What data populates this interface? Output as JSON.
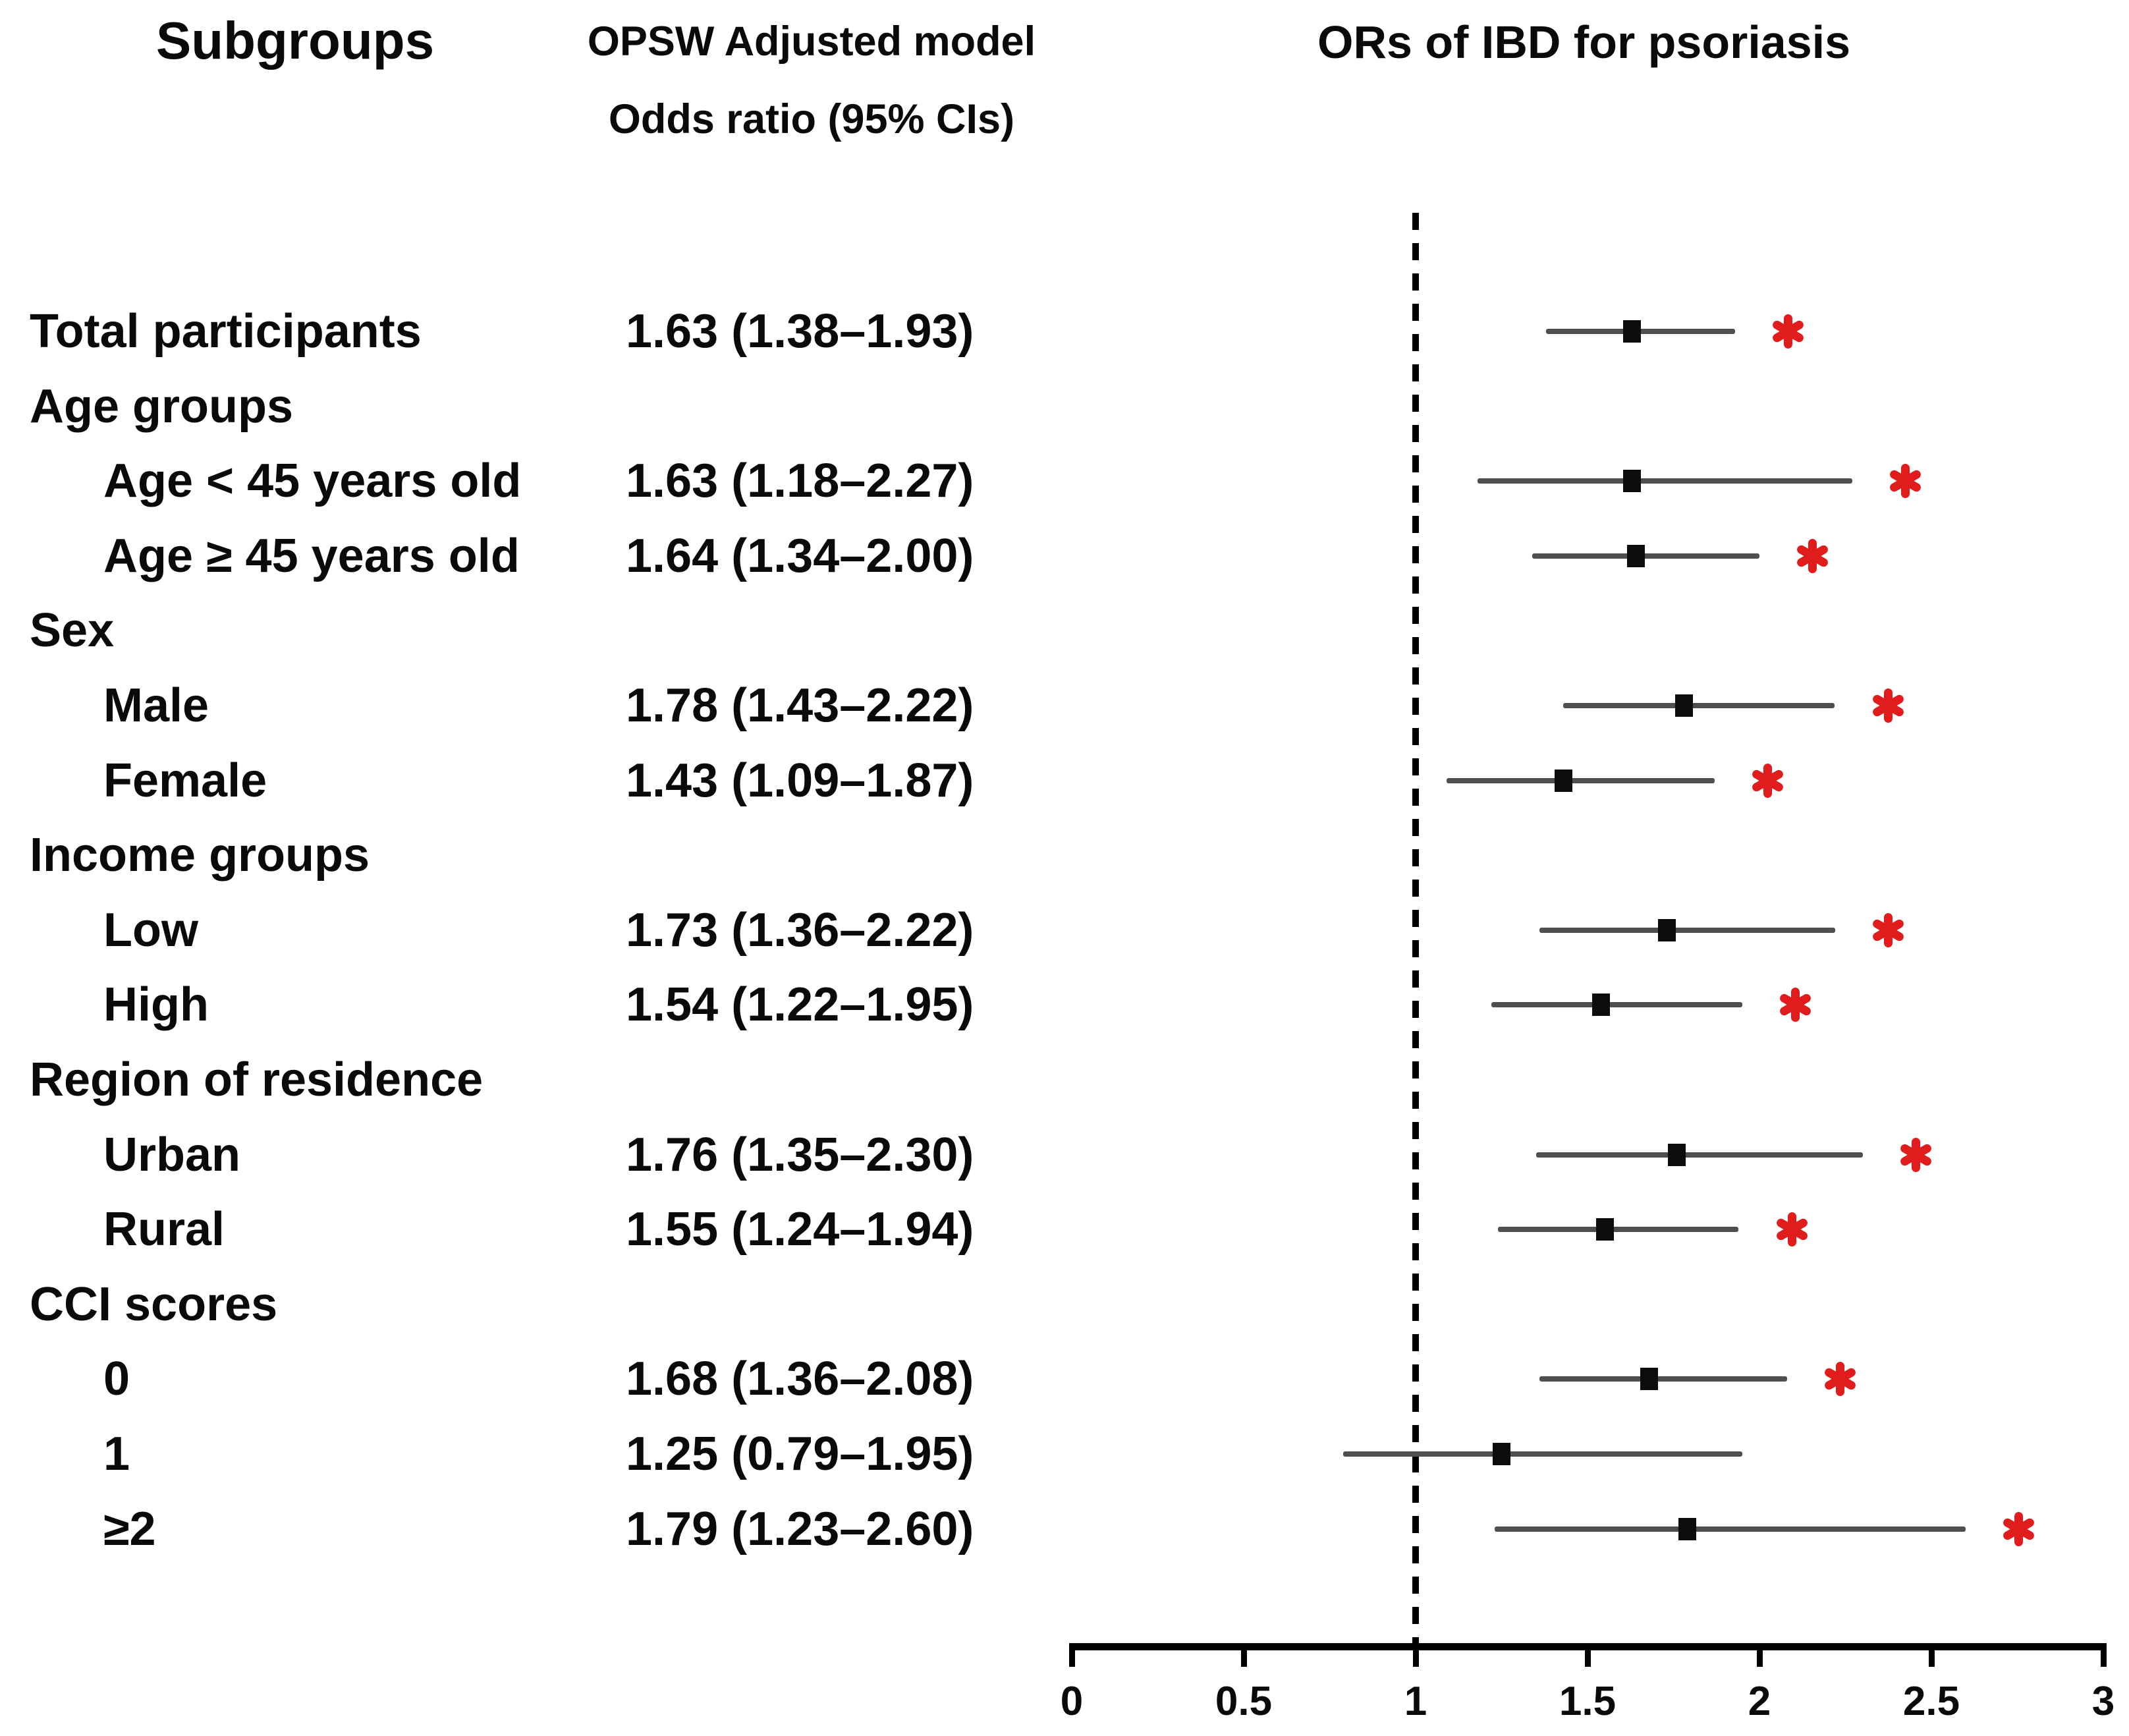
{
  "header": {
    "subgroups_title": "Subgroups",
    "model_title_line1": "OPSW Adjusted model",
    "model_title_line2": "Odds ratio (95% CIs)",
    "plot_title": "ORs of IBD for psoriasis"
  },
  "chart_data": {
    "type": "forest",
    "title": "ORs of IBD for psoriasis",
    "column_headers": [
      "Subgroups",
      "OPSW Adjusted model Odds ratio (95% CIs)"
    ],
    "x_axis": {
      "min": 0,
      "max": 3,
      "reference_line": 1,
      "ticks": [
        {
          "value": 0,
          "label": "0"
        },
        {
          "value": 0.5,
          "label": "0.5"
        },
        {
          "value": 1,
          "label": "1"
        },
        {
          "value": 1.5,
          "label": "1.5"
        },
        {
          "value": 2,
          "label": "2"
        },
        {
          "value": 2.5,
          "label": "2.5"
        },
        {
          "value": 3,
          "label": "3"
        }
      ]
    },
    "rows": [
      {
        "label": "Total participants",
        "indent": 0,
        "or": 1.63,
        "low": 1.38,
        "high": 1.93,
        "or_text": "1.63 (1.38–1.93)",
        "significant": true
      },
      {
        "label": "Age groups",
        "indent": 0,
        "group_header": true
      },
      {
        "label": "Age < 45 years old",
        "indent": 1,
        "or": 1.63,
        "low": 1.18,
        "high": 2.27,
        "or_text": "1.63 (1.18–2.27)",
        "significant": true
      },
      {
        "label": "Age ≥ 45 years old",
        "indent": 1,
        "or": 1.64,
        "low": 1.34,
        "high": 2.0,
        "or_text": "1.64 (1.34–2.00)",
        "significant": true
      },
      {
        "label": "Sex",
        "indent": 0,
        "group_header": true
      },
      {
        "label": "Male",
        "indent": 1,
        "or": 1.78,
        "low": 1.43,
        "high": 2.22,
        "or_text": "1.78 (1.43–2.22)",
        "significant": true
      },
      {
        "label": "Female",
        "indent": 1,
        "or": 1.43,
        "low": 1.09,
        "high": 1.87,
        "or_text": "1.43 (1.09–1.87)",
        "significant": true
      },
      {
        "label": "Income groups",
        "indent": 0,
        "group_header": true
      },
      {
        "label": "Low",
        "indent": 1,
        "or": 1.73,
        "low": 1.36,
        "high": 2.22,
        "or_text": "1.73 (1.36–2.22)",
        "significant": true
      },
      {
        "label": "High",
        "indent": 1,
        "or": 1.54,
        "low": 1.22,
        "high": 1.95,
        "or_text": "1.54 (1.22–1.95)",
        "significant": true
      },
      {
        "label": "Region of residence",
        "indent": 0,
        "group_header": true
      },
      {
        "label": "Urban",
        "indent": 1,
        "or": 1.76,
        "low": 1.35,
        "high": 2.3,
        "or_text": "1.76 (1.35–2.30)",
        "significant": true
      },
      {
        "label": "Rural",
        "indent": 1,
        "or": 1.55,
        "low": 1.24,
        "high": 1.94,
        "or_text": "1.55 (1.24–1.94)",
        "significant": true
      },
      {
        "label": "CCI scores",
        "indent": 0,
        "group_header": true
      },
      {
        "label": "0",
        "indent": 1,
        "or": 1.68,
        "low": 1.36,
        "high": 2.08,
        "or_text": "1.68 (1.36–2.08)",
        "significant": true
      },
      {
        "label": "1",
        "indent": 1,
        "or": 1.25,
        "low": 0.79,
        "high": 1.95,
        "or_text": "1.25 (0.79–1.95)",
        "significant": false
      },
      {
        "label": "≥2",
        "indent": 1,
        "or": 1.79,
        "low": 1.23,
        "high": 2.6,
        "or_text": "1.79 (1.23–2.60)",
        "significant": true
      }
    ],
    "colors": {
      "asterisk_red": "#e01c1c",
      "ci_line_gray": "#4f4f4f",
      "marker_black": "#0c0c0c",
      "axis_black": "#000000"
    },
    "legend": "red asterisk marks statistically significant odds ratio"
  }
}
